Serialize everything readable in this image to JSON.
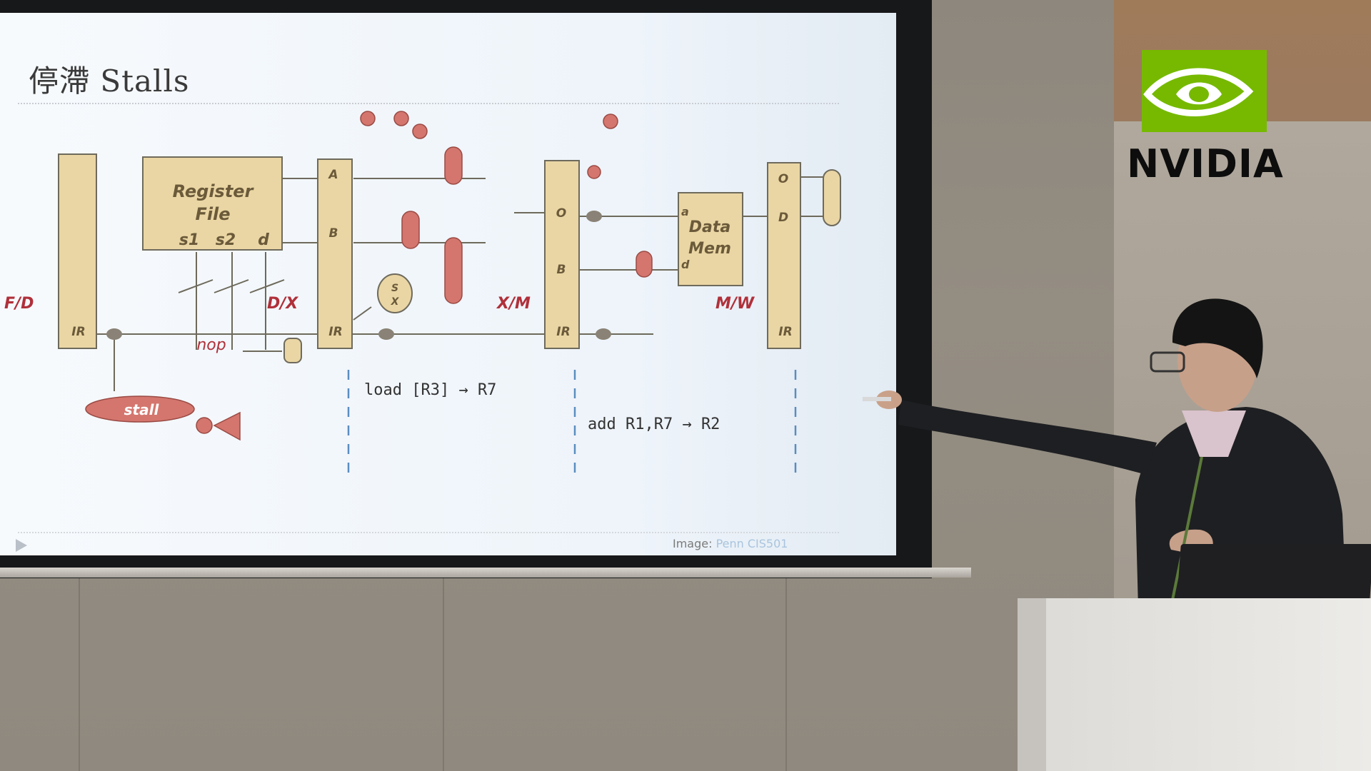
{
  "slide": {
    "title": "停滯 Stalls",
    "credit_prefix": "Image: ",
    "credit_source": "Penn CIS501"
  },
  "diagram": {
    "register_file": "Register",
    "register_file_2": "File",
    "rf_ports": [
      "s1",
      "s2",
      "d"
    ],
    "data_mem": "Data",
    "data_mem_2": "Mem",
    "stage_labels": [
      "F/D",
      "D/X",
      "X/M",
      "M/W"
    ],
    "latch_fields_dx": [
      "A",
      "B",
      "IR"
    ],
    "latch_fields_xm": [
      "O",
      "B",
      "IR"
    ],
    "latch_fields_mw": [
      "O",
      "D",
      "IR"
    ],
    "latch_field_fd": "IR",
    "mem_ports": [
      "a",
      "d"
    ],
    "nop": "nop",
    "stall": "stall",
    "sx_top": "S",
    "sx_bottom": "X",
    "instr_1": "load [R3] → R7",
    "instr_2": "add R1,R7 → R2"
  },
  "logo": {
    "brand": "NVIDIA"
  },
  "colors": {
    "box_fill": "#ead6a4",
    "box_stroke": "#6e6a5c",
    "red_fill": "#d4766e",
    "dash": "#5a8dbf",
    "nvidia_green": "#76b900"
  }
}
